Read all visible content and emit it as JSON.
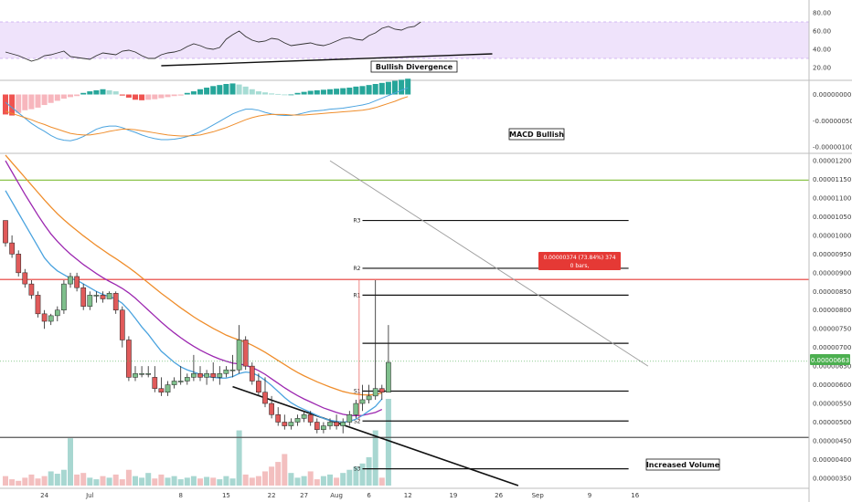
{
  "chart_data": [
    {
      "type": "line",
      "panel": "rsi",
      "ylim": [
        10,
        90
      ],
      "yticks": [
        "80.00",
        "60.00",
        "40.00",
        "20.00"
      ],
      "band": [
        30,
        70
      ],
      "series": [
        {
          "values": [
            37,
            35,
            33,
            30,
            27,
            29,
            33,
            34,
            36,
            38,
            32,
            31,
            30,
            29,
            33,
            36,
            35,
            34,
            38,
            39,
            37,
            33,
            30,
            30,
            34,
            36,
            37,
            39,
            43,
            46,
            44,
            41,
            40,
            42,
            51,
            56,
            60,
            54,
            50,
            48,
            49,
            52,
            51,
            47,
            44,
            45,
            46,
            47,
            45,
            44,
            46,
            49,
            52,
            53,
            51,
            50,
            55,
            58,
            63,
            65,
            62,
            61,
            64,
            65,
            70
          ]
        }
      ],
      "annotation": {
        "label": "Bullish Divergence"
      },
      "divergence_line": [
        [
          24,
          22
        ],
        [
          75,
          35
        ]
      ]
    },
    {
      "type": "bar",
      "panel": "macd",
      "yticks": [
        "0.00000000",
        "-0.00000050",
        "-0.00000100"
      ],
      "ylim": [
        -1.05,
        0.2
      ],
      "histogram": [
        -0.38,
        -0.4,
        -0.35,
        -0.3,
        -0.28,
        -0.25,
        -0.2,
        -0.16,
        -0.12,
        -0.08,
        -0.05,
        -0.03,
        0.03,
        0.06,
        0.08,
        0.1,
        0.08,
        0.06,
        -0.02,
        -0.06,
        -0.1,
        -0.11,
        -0.1,
        -0.09,
        -0.07,
        -0.05,
        -0.03,
        -0.02,
        0.03,
        0.06,
        0.1,
        0.13,
        0.16,
        0.18,
        0.2,
        0.21,
        0.19,
        0.15,
        0.1,
        0.06,
        0.04,
        0.02,
        0.01,
        0.0,
        0.0,
        0.03,
        0.05,
        0.07,
        0.08,
        0.09,
        0.1,
        0.11,
        0.12,
        0.13,
        0.15,
        0.16,
        0.18,
        0.2,
        0.22,
        0.24,
        0.26,
        0.28,
        0.3
      ],
      "macd_line": [
        -0.15,
        -0.25,
        -0.35,
        -0.45,
        -0.55,
        -0.63,
        -0.7,
        -0.78,
        -0.84,
        -0.87,
        -0.88,
        -0.85,
        -0.8,
        -0.73,
        -0.66,
        -0.62,
        -0.6,
        -0.6,
        -0.63,
        -0.68,
        -0.72,
        -0.77,
        -0.81,
        -0.84,
        -0.86,
        -0.86,
        -0.85,
        -0.83,
        -0.8,
        -0.76,
        -0.71,
        -0.65,
        -0.58,
        -0.51,
        -0.44,
        -0.37,
        -0.32,
        -0.28,
        -0.28,
        -0.3,
        -0.34,
        -0.37,
        -0.39,
        -0.4,
        -0.4,
        -0.38,
        -0.35,
        -0.32,
        -0.31,
        -0.3,
        -0.28,
        -0.27,
        -0.26,
        -0.24,
        -0.22,
        -0.2,
        -0.17,
        -0.12,
        -0.07,
        -0.02,
        0.03,
        0.08,
        0.13
      ],
      "signal_line": [
        -0.32,
        -0.36,
        -0.4,
        -0.44,
        -0.48,
        -0.53,
        -0.57,
        -0.62,
        -0.66,
        -0.7,
        -0.74,
        -0.76,
        -0.77,
        -0.77,
        -0.75,
        -0.73,
        -0.7,
        -0.68,
        -0.66,
        -0.66,
        -0.67,
        -0.69,
        -0.71,
        -0.73,
        -0.75,
        -0.77,
        -0.78,
        -0.79,
        -0.79,
        -0.78,
        -0.77,
        -0.74,
        -0.71,
        -0.67,
        -0.63,
        -0.58,
        -0.53,
        -0.48,
        -0.44,
        -0.41,
        -0.39,
        -0.38,
        -0.38,
        -0.38,
        -0.39,
        -0.39,
        -0.39,
        -0.38,
        -0.37,
        -0.36,
        -0.35,
        -0.34,
        -0.33,
        -0.32,
        -0.31,
        -0.3,
        -0.28,
        -0.25,
        -0.21,
        -0.17,
        -0.13,
        -0.08,
        -0.04
      ],
      "annotation": {
        "label": "MACD Bullish"
      }
    },
    {
      "type": "candlestick",
      "panel": "price",
      "ylim": [
        3.35e-06,
        1.21e-05
      ],
      "yticks": [
        "0.00001200",
        "0.00001150",
        "0.00001100",
        "0.00001050",
        "0.00001000",
        "0.00000950",
        "0.00000900",
        "0.00000850",
        "0.00000800",
        "0.00000750",
        "0.00000700",
        "0.00000650",
        "0.00000600",
        "0.00000550",
        "0.00000500",
        "0.00000450",
        "0.00000400",
        "0.00000350"
      ],
      "xticks": [
        {
          "label": "24",
          "i": 6
        },
        {
          "label": "Jul",
          "i": 13
        },
        {
          "label": "8",
          "i": 27
        },
        {
          "label": "15",
          "i": 34
        },
        {
          "label": "22",
          "i": 41
        },
        {
          "label": "27",
          "i": 46
        },
        {
          "label": "Aug",
          "i": 51
        },
        {
          "label": "6",
          "i": 56
        },
        {
          "label": "12",
          "i": 62
        },
        {
          "label": "19",
          "i": 69
        },
        {
          "label": "26",
          "i": 76
        },
        {
          "label": "Sep",
          "i": 82
        },
        {
          "label": "9",
          "i": 90
        },
        {
          "label": "16",
          "i": 97
        }
      ],
      "ohlc": [
        [
          1040,
          1040,
          970,
          980
        ],
        [
          980,
          1000,
          940,
          950
        ],
        [
          950,
          960,
          890,
          900
        ],
        [
          900,
          910,
          860,
          870
        ],
        [
          870,
          880,
          830,
          840
        ],
        [
          840,
          850,
          780,
          790
        ],
        [
          790,
          800,
          750,
          770
        ],
        [
          770,
          790,
          760,
          785
        ],
        [
          785,
          810,
          770,
          800
        ],
        [
          800,
          880,
          790,
          870
        ],
        [
          870,
          900,
          860,
          890
        ],
        [
          890,
          900,
          850,
          860
        ],
        [
          860,
          870,
          800,
          810
        ],
        [
          810,
          850,
          800,
          840
        ],
        [
          840,
          850,
          820,
          840
        ],
        [
          840,
          850,
          820,
          830
        ],
        [
          830,
          850,
          830,
          845
        ],
        [
          845,
          850,
          790,
          800
        ],
        [
          800,
          810,
          700,
          720
        ],
        [
          720,
          730,
          610,
          620
        ],
        [
          620,
          650,
          610,
          630
        ],
        [
          630,
          650,
          620,
          630
        ],
        [
          630,
          650,
          620,
          630
        ],
        [
          620,
          650,
          580,
          590
        ],
        [
          590,
          620,
          570,
          580
        ],
        [
          580,
          610,
          570,
          600
        ],
        [
          600,
          620,
          590,
          610
        ],
        [
          610,
          650,
          600,
          610
        ],
        [
          610,
          630,
          600,
          620
        ],
        [
          620,
          680,
          610,
          630
        ],
        [
          630,
          650,
          610,
          620
        ],
        [
          620,
          640,
          600,
          630
        ],
        [
          630,
          660,
          610,
          620
        ],
        [
          620,
          650,
          600,
          630
        ],
        [
          630,
          650,
          620,
          640
        ],
        [
          640,
          680,
          620,
          640
        ],
        [
          640,
          760,
          630,
          720
        ],
        [
          720,
          730,
          640,
          650
        ],
        [
          650,
          660,
          600,
          610
        ],
        [
          610,
          630,
          570,
          580
        ],
        [
          580,
          620,
          540,
          550
        ],
        [
          550,
          570,
          510,
          520
        ],
        [
          520,
          540,
          490,
          500
        ],
        [
          500,
          520,
          480,
          490
        ],
        [
          490,
          510,
          480,
          500
        ],
        [
          500,
          520,
          490,
          510
        ],
        [
          510,
          530,
          500,
          520
        ],
        [
          520,
          530,
          490,
          500
        ],
        [
          500,
          510,
          470,
          480
        ],
        [
          480,
          500,
          470,
          490
        ],
        [
          490,
          510,
          480,
          500
        ],
        [
          500,
          520,
          480,
          490
        ],
        [
          490,
          510,
          470,
          500
        ],
        [
          500,
          530,
          490,
          520
        ],
        [
          520,
          560,
          510,
          550
        ],
        [
          550,
          600,
          530,
          560
        ],
        [
          560,
          600,
          550,
          570
        ],
        [
          570,
          880,
          560,
          590
        ],
        [
          590,
          600,
          560,
          580
        ],
        [
          580,
          760,
          580,
          660
        ]
      ],
      "ema_fast": [
        1120,
        1090,
        1060,
        1030,
        1000,
        970,
        940,
        920,
        905,
        895,
        885,
        880,
        870,
        860,
        850,
        842,
        836,
        830,
        818,
        800,
        778,
        755,
        735,
        712,
        690,
        675,
        660,
        648,
        640,
        634,
        628,
        622,
        620,
        618,
        618,
        622,
        630,
        634,
        632,
        624,
        612,
        598,
        582,
        566,
        552,
        542,
        534,
        526,
        518,
        510,
        505,
        502,
        500,
        502,
        508,
        518,
        530,
        542,
        562
      ],
      "ema_mid": [
        1200,
        1170,
        1140,
        1110,
        1082,
        1054,
        1028,
        1004,
        984,
        966,
        950,
        936,
        922,
        910,
        898,
        887,
        877,
        868,
        858,
        846,
        832,
        816,
        800,
        784,
        768,
        753,
        739,
        726,
        714,
        703,
        693,
        684,
        676,
        669,
        663,
        658,
        656,
        652,
        646,
        638,
        628,
        616,
        604,
        592,
        581,
        571,
        562,
        554,
        546,
        538,
        532,
        526,
        521,
        518,
        517,
        518,
        522,
        526,
        534
      ],
      "ema_slow": [
        1215,
        1195,
        1175,
        1155,
        1135,
        1115,
        1095,
        1076,
        1058,
        1042,
        1027,
        1013,
        999,
        986,
        973,
        961,
        949,
        938,
        926,
        914,
        901,
        887,
        873,
        859,
        845,
        832,
        819,
        806,
        794,
        782,
        771,
        761,
        751,
        742,
        733,
        726,
        720,
        714,
        706,
        697,
        687,
        676,
        665,
        654,
        643,
        633,
        624,
        616,
        608,
        601,
        594,
        588,
        582,
        578,
        575,
        573,
        573,
        574,
        578
      ],
      "horizontal_levels": [
        {
          "color": "#8bc34a",
          "value": 1148
        },
        {
          "color": "#e53935",
          "value": 882
        },
        {
          "color": "#555555",
          "value": 459
        }
      ],
      "pivots": [
        {
          "label": "R3",
          "value": 1040
        },
        {
          "label": "R2",
          "value": 912
        },
        {
          "label": "R1",
          "value": 840
        },
        {
          "label": "",
          "value": 711
        },
        {
          "label": "S1",
          "value": 583
        },
        {
          "label": "S2",
          "value": 503
        },
        {
          "label": "S3",
          "value": 375
        }
      ],
      "trendlines": [
        {
          "from": [
            35,
            595
          ],
          "to": [
            79,
            330
          ],
          "color": "#111111"
        },
        {
          "from": [
            50,
            1200
          ],
          "to": [
            99,
            650
          ],
          "color": "#9e9e9e"
        }
      ],
      "last_price": "0.00000663",
      "measure": {
        "line1": "0.00000374 (73.84%) 374",
        "line2": "0 bars,"
      },
      "volume": [
        12,
        8,
        6,
        10,
        14,
        9,
        12,
        18,
        15,
        20,
        60,
        14,
        16,
        10,
        8,
        12,
        10,
        14,
        8,
        20,
        12,
        10,
        16,
        9,
        14,
        10,
        12,
        8,
        10,
        12,
        9,
        11,
        10,
        8,
        12,
        9,
        70,
        14,
        10,
        12,
        18,
        24,
        30,
        40,
        16,
        10,
        12,
        18,
        8,
        12,
        14,
        10,
        16,
        20,
        24,
        28,
        36,
        70,
        10,
        110
      ]
    }
  ],
  "annotations": {
    "rsi_note": "Bullish Divergence",
    "macd_note": "MACD Bullish",
    "volume_note": "Increased Volume"
  },
  "colors": {
    "up": "#7fbf8c",
    "down": "#e05a5a",
    "ema_fast": "#4aa3df",
    "ema_mid": "#9c27b0",
    "ema_slow": "#ef8d2b",
    "rsi_band": "#efe3fb",
    "hist_pos_dark": "#26a69a",
    "hist_pos_light": "#a6dcd4",
    "hist_neg_dark": "#ef5350",
    "hist_neg_light": "#f7b6bd",
    "volume": "#9fd3cc",
    "volume_down": "#f2b8b8",
    "last_price_bg": "#4caf50",
    "measure_bg": "#e53935"
  }
}
